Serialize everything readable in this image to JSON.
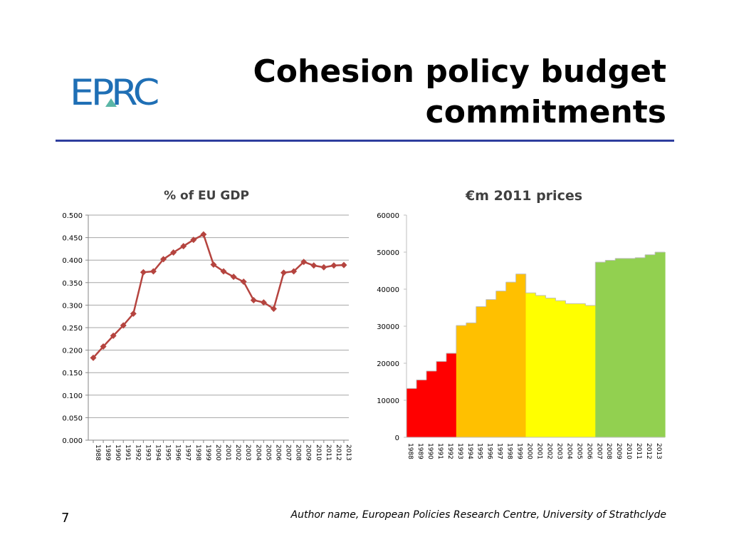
{
  "slide": {
    "title": "Cohesion policy budget\ncommitments",
    "logo_text": "EPRC",
    "slide_number": "7",
    "footer": "Author name, European Policies Research Centre, University of Strathclyde"
  },
  "colors": {
    "rule": "#2e3e9e",
    "logo": "#1f6fb5",
    "logo_accent": "#5bb6a6",
    "line_series": "#b5443f",
    "bar_red": "#ff0000",
    "bar_orange": "#ffc000",
    "bar_yellow": "#ffff00",
    "bar_green": "#92d050"
  },
  "chart_data": [
    {
      "type": "line",
      "title": "% of EU GDP",
      "xlabel": "",
      "ylabel": "",
      "x": [
        "1988",
        "1989",
        "1990",
        "1991",
        "1992",
        "1993",
        "1994",
        "1995",
        "1996",
        "1997",
        "1998",
        "1999",
        "2000",
        "2001",
        "2002",
        "2003",
        "2004",
        "2005",
        "2006",
        "2007",
        "2008",
        "2009",
        "2010",
        "2011",
        "2012",
        "2013"
      ],
      "values": [
        0.183,
        0.208,
        0.232,
        0.255,
        0.281,
        0.373,
        0.375,
        0.402,
        0.417,
        0.431,
        0.445,
        0.457,
        0.39,
        0.375,
        0.363,
        0.352,
        0.311,
        0.306,
        0.292,
        0.372,
        0.375,
        0.396,
        0.388,
        0.384,
        0.388,
        0.389
      ],
      "ylim": [
        0,
        0.5
      ],
      "yticks": [
        "0.000",
        "0.050",
        "0.100",
        "0.150",
        "0.200",
        "0.250",
        "0.300",
        "0.350",
        "0.400",
        "0.450",
        "0.500"
      ],
      "grid": true,
      "legend": "none",
      "marker": "diamond"
    },
    {
      "type": "bar",
      "title": "€m 2011 prices",
      "xlabel": "",
      "ylabel": "",
      "categories": [
        "1988",
        "1989",
        "1990",
        "1991",
        "1992",
        "1993",
        "1994",
        "1995",
        "1996",
        "1997",
        "1998",
        "1999",
        "2000",
        "2001",
        "2002",
        "2003",
        "2004",
        "2005",
        "2006",
        "2007",
        "2008",
        "2009",
        "2010",
        "2011",
        "2012",
        "2013"
      ],
      "values": [
        13200,
        15500,
        17900,
        20500,
        22700,
        30200,
        30900,
        35300,
        37200,
        39500,
        41900,
        44100,
        39000,
        38300,
        37600,
        36900,
        36100,
        36100,
        35600,
        47300,
        47800,
        48300,
        48300,
        48500,
        49300,
        50000
      ],
      "colors": [
        "#ff0000",
        "#ff0000",
        "#ff0000",
        "#ff0000",
        "#ff0000",
        "#ffc000",
        "#ffc000",
        "#ffc000",
        "#ffc000",
        "#ffc000",
        "#ffc000",
        "#ffc000",
        "#ffff00",
        "#ffff00",
        "#ffff00",
        "#ffff00",
        "#ffff00",
        "#ffff00",
        "#ffff00",
        "#92d050",
        "#92d050",
        "#92d050",
        "#92d050",
        "#92d050",
        "#92d050",
        "#92d050"
      ],
      "ylim": [
        0,
        60000
      ],
      "yticks": [
        "0",
        "10000",
        "20000",
        "30000",
        "40000",
        "50000",
        "60000"
      ],
      "grid": false,
      "legend": "none"
    }
  ]
}
